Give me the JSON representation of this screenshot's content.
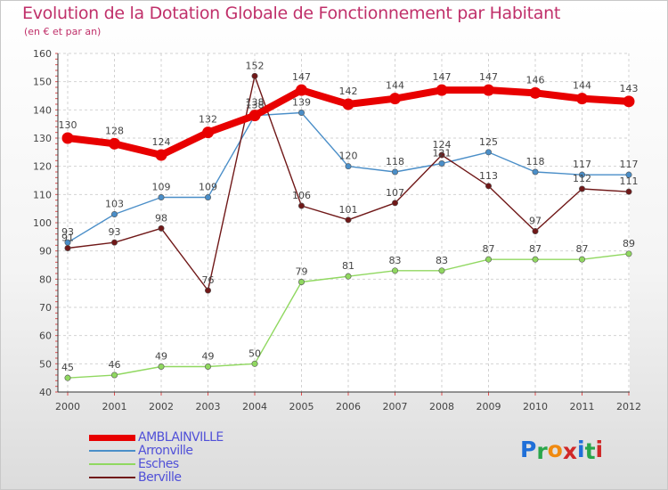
{
  "title": "Evolution de la Dotation Globale de Fonctionnement par Habitant",
  "subtitle": "(en € et par an)",
  "logo": {
    "text": "Proxiti",
    "colors": [
      "#1f6fd8",
      "#2aa64a",
      "#f08a10",
      "#d02828",
      "#1f6fd8",
      "#2aa64a",
      "#d02828"
    ]
  },
  "chart_data": {
    "type": "line",
    "title": "Evolution de la Dotation Globale de Fonctionnement par Habitant",
    "subtitle": "(en € et par an)",
    "xlabel": "",
    "ylabel": "",
    "ylim": [
      40,
      160
    ],
    "yticks": [
      40,
      50,
      60,
      70,
      80,
      90,
      100,
      110,
      120,
      130,
      140,
      150,
      160
    ],
    "grid": true,
    "legend_position": "bottom-left",
    "categories": [
      "2000",
      "2001",
      "2002",
      "2003",
      "2004",
      "2005",
      "2006",
      "2007",
      "2008",
      "2009",
      "2010",
      "2011",
      "2012"
    ],
    "series": [
      {
        "name": "AMBLAINVILLE",
        "color": "#e80000",
        "values": [
          130,
          128,
          124,
          132,
          138,
          147,
          142,
          144,
          147,
          147,
          146,
          144,
          143
        ]
      },
      {
        "name": "Arronville",
        "color": "#4a8ec8",
        "values": [
          93,
          103,
          109,
          109,
          138,
          139,
          120,
          118,
          121,
          125,
          118,
          117,
          117
        ]
      },
      {
        "name": "Esches",
        "color": "#90d860",
        "values": [
          45,
          46,
          49,
          49,
          50,
          79,
          81,
          83,
          83,
          87,
          87,
          87,
          89
        ]
      },
      {
        "name": "Berville",
        "color": "#701818",
        "values": [
          91,
          93,
          98,
          76,
          152,
          106,
          101,
          107,
          124,
          113,
          97,
          112,
          111
        ]
      }
    ]
  }
}
